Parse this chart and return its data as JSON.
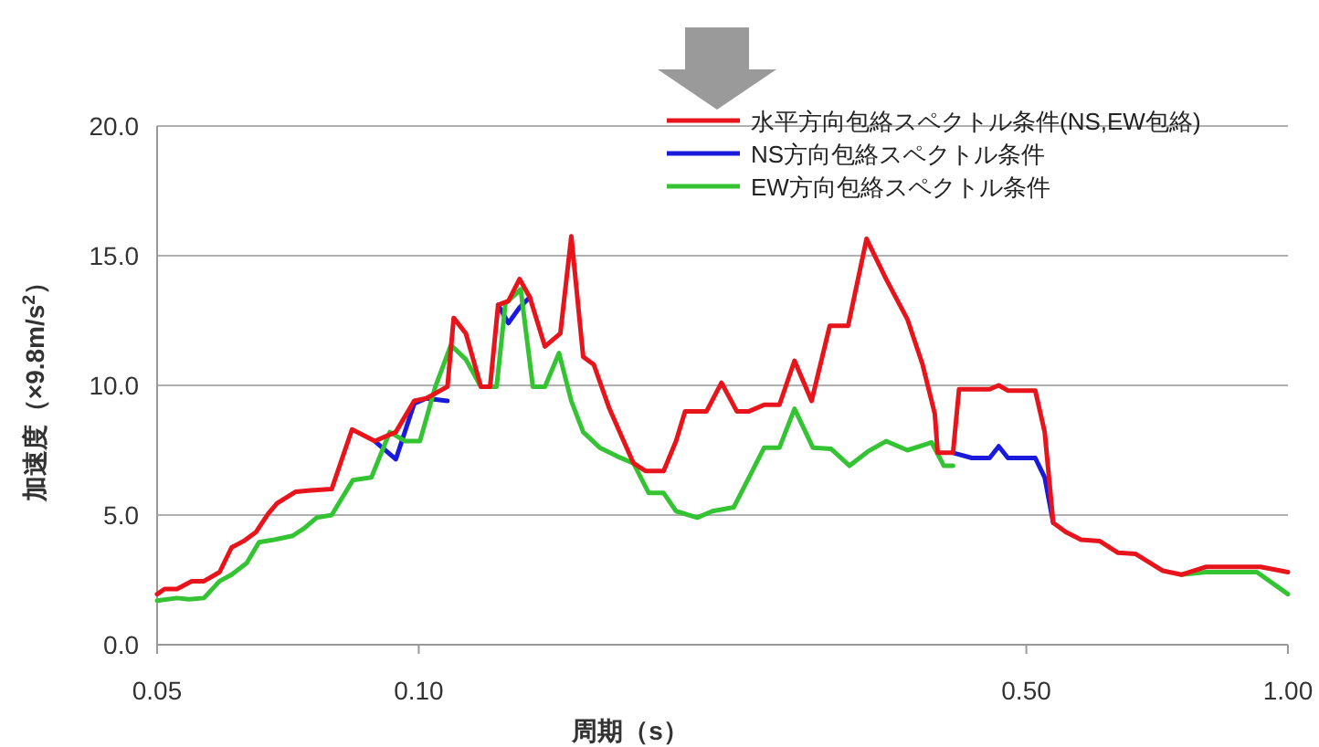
{
  "chart_data": {
    "type": "line",
    "xlabel": "周期（s）",
    "ylabel": "加速度（×9.8m/s$^{2}$）",
    "log": "x",
    "grid": "y",
    "legend": "top right",
    "marker": "none",
    "line_style": "solid",
    "xlim": [
      0.05,
      1.0
    ],
    "xticks": [
      {
        "value": 0.05,
        "label": "0.05"
      },
      {
        "value": 0.1,
        "label": "0.10"
      },
      {
        "value": 0.5,
        "label": "0.50"
      },
      {
        "value": 1.0,
        "label": "1.00"
      }
    ],
    "ylim": [
      0,
      20
    ],
    "yticks": [
      {
        "value": 0,
        "label": "0.0"
      },
      {
        "value": 5,
        "label": "5.0"
      },
      {
        "value": 10,
        "label": "10.0"
      },
      {
        "value": 15,
        "label": "15.0"
      },
      {
        "value": 20,
        "label": "20.0"
      }
    ],
    "series": [
      {
        "name": "水平方向包絡スペクトル条件(NS,EW包絡)",
        "color": "#e8141c",
        "x": [
          0.05,
          0.051,
          0.0527,
          0.0548,
          0.0566,
          0.059,
          0.0609,
          0.0629,
          0.065,
          0.0671,
          0.0687,
          0.0722,
          0.0751,
          0.0794,
          0.0838,
          0.089,
          0.0941,
          0.0988,
          0.102,
          0.1079,
          0.1097,
          0.1133,
          0.1179,
          0.1208,
          0.1234,
          0.1268,
          0.1306,
          0.1342,
          0.1397,
          0.1455,
          0.1498,
          0.1546,
          0.159,
          0.1655,
          0.1766,
          0.1823,
          0.1913,
          0.1977,
          0.2025,
          0.2143,
          0.223,
          0.2322,
          0.2399,
          0.2497,
          0.26,
          0.2706,
          0.2831,
          0.2971,
          0.3119,
          0.3275,
          0.3449,
          0.3649,
          0.3799,
          0.3924,
          0.3954,
          0.4118,
          0.4184,
          0.4392,
          0.4537,
          0.4648,
          0.4762,
          0.512,
          0.525,
          0.537,
          0.555,
          0.578,
          0.607,
          0.637,
          0.668,
          0.718,
          0.754,
          0.804,
          0.93,
          1.0
        ],
        "values": [
          1.95,
          2.15,
          2.15,
          2.45,
          2.45,
          2.8,
          3.75,
          4.0,
          4.35,
          5.05,
          5.45,
          5.9,
          5.95,
          6.0,
          8.3,
          7.85,
          8.2,
          9.4,
          9.5,
          9.95,
          12.6,
          12.0,
          9.95,
          9.95,
          13.1,
          13.25,
          14.1,
          13.4,
          11.5,
          12.0,
          15.75,
          11.1,
          10.8,
          9.15,
          7.0,
          6.7,
          6.7,
          7.85,
          9.0,
          9.0,
          10.1,
          9.0,
          9.0,
          9.25,
          9.25,
          10.95,
          9.4,
          12.3,
          12.3,
          15.65,
          14.1,
          12.55,
          10.8,
          8.9,
          7.4,
          7.4,
          9.85,
          9.85,
          9.85,
          10.0,
          9.8,
          9.8,
          8.2,
          4.7,
          4.35,
          4.05,
          4.0,
          3.55,
          3.5,
          2.85,
          2.7,
          3.0,
          3.0,
          2.8
        ]
      },
      {
        "name": "NS方向包絡スペクトル条件",
        "color": "#1a1adc",
        "x": [
          0.089,
          0.0941,
          0.0988,
          0.102,
          0.1079,
          null,
          0.1234,
          0.1268,
          0.1306,
          0.1342,
          null,
          0.4118,
          0.4329,
          0.4537,
          0.4648,
          0.4762,
          0.512,
          0.525,
          0.537
        ],
        "values": [
          7.85,
          7.15,
          9.3,
          9.5,
          9.4,
          null,
          13.1,
          12.4,
          13.0,
          13.4,
          null,
          7.4,
          7.2,
          7.2,
          7.65,
          7.2,
          7.2,
          6.45,
          4.7
        ]
      },
      {
        "name": "EW方向包絡スペクトル条件",
        "color": "#34c433",
        "x": [
          0.05,
          0.0527,
          0.0544,
          0.0566,
          0.059,
          0.0609,
          0.0634,
          0.0655,
          0.0682,
          0.0716,
          0.0739,
          0.0763,
          0.0794,
          0.084,
          0.0882,
          0.0926,
          0.0965,
          0.1003,
          0.1045,
          0.1089,
          0.1133,
          0.1179,
          0.1229,
          0.1258,
          0.131,
          0.1353,
          0.1397,
          0.145,
          0.1498,
          0.1546,
          0.1615,
          0.1695,
          0.1766,
          0.1839,
          0.1913,
          0.1977,
          0.2091,
          0.2177,
          0.2304,
          0.2497,
          0.26,
          0.2706,
          0.2841,
          0.2982,
          0.313,
          0.3286,
          0.3449,
          0.3649,
          0.3891,
          0.4019,
          0.4118,
          null,
          0.754,
          0.804,
          0.921,
          1.0
        ],
        "values": [
          1.7,
          1.8,
          1.75,
          1.8,
          2.45,
          2.7,
          3.15,
          3.95,
          4.05,
          4.2,
          4.5,
          4.9,
          5.0,
          6.35,
          6.45,
          8.2,
          7.85,
          7.85,
          9.95,
          11.55,
          11.0,
          9.95,
          9.95,
          13.15,
          13.7,
          9.95,
          9.95,
          11.25,
          9.4,
          8.2,
          7.6,
          7.25,
          7.0,
          5.85,
          5.85,
          5.15,
          4.9,
          5.15,
          5.3,
          7.6,
          7.6,
          9.1,
          7.6,
          7.55,
          6.9,
          7.45,
          7.85,
          7.5,
          7.8,
          6.9,
          6.9,
          null,
          2.7,
          2.8,
          2.8,
          1.95
        ]
      }
    ]
  }
}
